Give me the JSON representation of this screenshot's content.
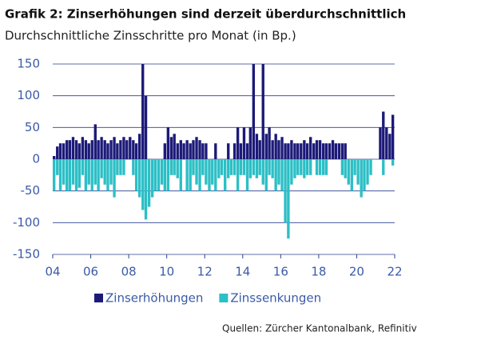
{
  "chart_data": {
    "type": "bar",
    "title": "Grafik 2: Zinserhöhungen sind derzeit überdurchschnittlich",
    "subtitle": "Durchschnittliche Zinsschritte pro Monat (in Bp.)",
    "source": "Quellen: Zürcher Kantonalbank, Refinitiv",
    "x": [
      2004,
      2004.17,
      2004.33,
      2004.5,
      2004.67,
      2004.83,
      2005,
      2005.17,
      2005.33,
      2005.5,
      2005.67,
      2005.83,
      2006,
      2006.17,
      2006.33,
      2006.5,
      2006.67,
      2006.83,
      2007,
      2007.17,
      2007.33,
      2007.5,
      2007.67,
      2007.83,
      2008,
      2008.17,
      2008.33,
      2008.5,
      2008.67,
      2008.83,
      2009,
      2009.17,
      2009.33,
      2009.5,
      2009.67,
      2009.83,
      2010,
      2010.17,
      2010.33,
      2010.5,
      2010.67,
      2010.83,
      2011,
      2011.17,
      2011.33,
      2011.5,
      2011.67,
      2011.83,
      2012,
      2012.17,
      2012.33,
      2012.5,
      2012.67,
      2012.83,
      2013,
      2013.17,
      2013.33,
      2013.5,
      2013.67,
      2013.83,
      2014,
      2014.17,
      2014.33,
      2014.5,
      2014.67,
      2014.83,
      2015,
      2015.17,
      2015.33,
      2015.5,
      2015.67,
      2015.83,
      2016,
      2016.17,
      2016.33,
      2016.5,
      2016.67,
      2016.83,
      2017,
      2017.17,
      2017.33,
      2017.5,
      2017.67,
      2017.83,
      2018,
      2018.17,
      2018.33,
      2018.5,
      2018.67,
      2018.83,
      2019,
      2019.17,
      2019.33,
      2019.5,
      2019.67,
      2019.83,
      2020,
      2020.17,
      2020.33,
      2020.5,
      2020.67,
      2020.83,
      2021,
      2021.17,
      2021.33,
      2021.5,
      2021.67,
      2021.83
    ],
    "series": [
      {
        "name": "Zinserhöhungen",
        "color": "#1c1a78",
        "values": [
          5,
          20,
          25,
          25,
          30,
          30,
          35,
          30,
          25,
          35,
          30,
          25,
          30,
          55,
          30,
          35,
          30,
          25,
          30,
          35,
          25,
          30,
          35,
          30,
          35,
          30,
          25,
          40,
          150,
          100,
          0,
          0,
          0,
          0,
          0,
          25,
          50,
          35,
          40,
          25,
          30,
          25,
          30,
          25,
          30,
          35,
          30,
          25,
          25,
          0,
          0,
          25,
          0,
          0,
          0,
          25,
          0,
          25,
          50,
          25,
          50,
          25,
          50,
          150,
          40,
          30,
          150,
          40,
          50,
          30,
          40,
          30,
          35,
          25,
          25,
          30,
          25,
          25,
          25,
          30,
          25,
          35,
          25,
          30,
          30,
          25,
          25,
          25,
          30,
          25,
          25,
          25,
          25,
          0,
          0,
          0,
          0,
          0,
          0,
          0,
          0,
          0,
          0,
          50,
          75,
          50,
          40,
          70
        ]
      },
      {
        "name": "Zinssenkungen",
        "color": "#2cbfc6",
        "values": [
          -50,
          -25,
          -50,
          -40,
          -50,
          -50,
          -40,
          -50,
          -45,
          -25,
          -50,
          -40,
          -50,
          -40,
          -50,
          -30,
          -40,
          -50,
          -40,
          -60,
          -25,
          -25,
          -25,
          0,
          0,
          -25,
          -50,
          -60,
          -80,
          -95,
          -75,
          -60,
          -50,
          -50,
          -40,
          -50,
          -50,
          -25,
          -25,
          -30,
          -50,
          0,
          -50,
          -50,
          -25,
          -40,
          -50,
          -25,
          -40,
          -50,
          -40,
          -50,
          -30,
          -25,
          -50,
          -30,
          -25,
          -25,
          -50,
          -25,
          -25,
          -50,
          -30,
          -25,
          -30,
          -25,
          -40,
          -50,
          -25,
          -30,
          -50,
          -40,
          -50,
          -100,
          -125,
          -40,
          -30,
          -25,
          -25,
          -30,
          -25,
          -25,
          0,
          -25,
          -25,
          -25,
          -25,
          0,
          0,
          0,
          0,
          -25,
          -30,
          -40,
          -50,
          -25,
          -40,
          -60,
          -50,
          -40,
          -25,
          0,
          0,
          0,
          -25,
          0,
          0,
          -10
        ]
      }
    ],
    "xlim": [
      2004,
      2022
    ],
    "xticks": [
      {
        "value": 2004,
        "label": "04"
      },
      {
        "value": 2006,
        "label": "06"
      },
      {
        "value": 2008,
        "label": "08"
      },
      {
        "value": 2010,
        "label": "10"
      },
      {
        "value": 2012,
        "label": "12"
      },
      {
        "value": 2014,
        "label": "14"
      },
      {
        "value": 2016,
        "label": "16"
      },
      {
        "value": 2018,
        "label": "18"
      },
      {
        "value": 2020,
        "label": "20"
      },
      {
        "value": 2022,
        "label": "22"
      }
    ],
    "ylim": [
      -150,
      150
    ],
    "yticks": [
      -150,
      -100,
      -50,
      0,
      50,
      100,
      150
    ],
    "grid": true
  }
}
